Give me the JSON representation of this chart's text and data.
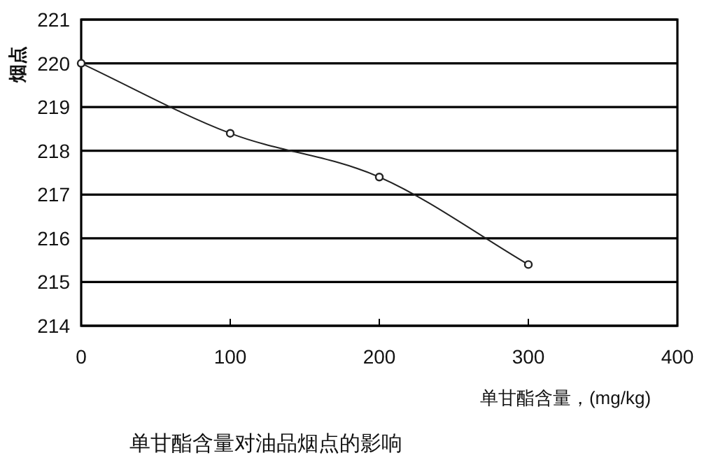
{
  "chart_data": {
    "type": "line",
    "title": "单甘酯含量对油品烟点的影响",
    "xlabel": "单甘酯含量，(mg/kg)",
    "ylabel": "烟点",
    "x": [
      0,
      100,
      200,
      300
    ],
    "series": [
      {
        "color": "#222222",
        "values": [
          220,
          218.4,
          217.4,
          215.4
        ]
      }
    ],
    "xlim": [
      0,
      400
    ],
    "xticks": [
      0,
      100,
      200,
      300,
      400
    ],
    "ylim": [
      214,
      221
    ],
    "yticks": [
      214,
      215,
      216,
      217,
      218,
      219,
      220,
      221
    ],
    "grid": "y",
    "marker": "circle",
    "line_style": "solid"
  }
}
